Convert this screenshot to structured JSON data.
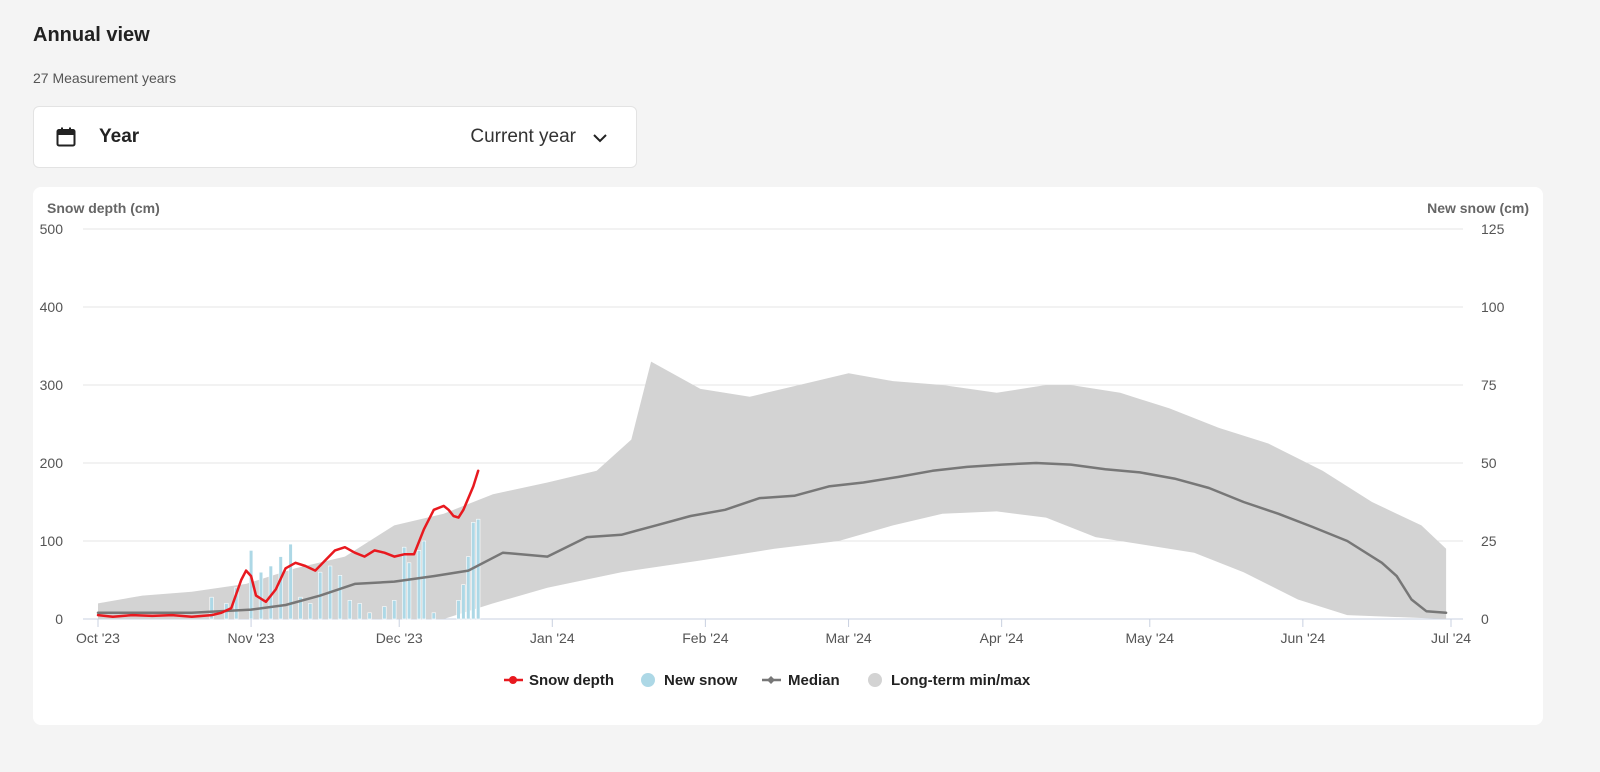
{
  "header": {
    "title": "Annual view",
    "subtitle": "27 Measurement years"
  },
  "year_selector": {
    "label": "Year",
    "value": "Current year",
    "icon": "calendar-icon",
    "chevron_icon": "chevron-down-icon"
  },
  "colors": {
    "snow_depth": "#e8191f",
    "new_snow": "#add8e6",
    "median": "#777777",
    "minmax": "#d3d3d3"
  },
  "chart_data": {
    "type": "line",
    "left_axis_title": "Snow depth (cm)",
    "right_axis_title": "New snow (cm)",
    "left_ylim": [
      0,
      500
    ],
    "left_ticks": [
      "0",
      "100",
      "200",
      "300",
      "400",
      "500"
    ],
    "right_ylim": [
      0,
      125
    ],
    "right_ticks": [
      "0",
      "25",
      "50",
      "75",
      "100",
      "125"
    ],
    "x_start": "2023-10-01",
    "x_end": "2024-07-01",
    "x_ticks": [
      {
        "date": "2023-10-01",
        "label": "Oct '23"
      },
      {
        "date": "2023-11-01",
        "label": "Nov '23"
      },
      {
        "date": "2023-12-01",
        "label": "Dec '23"
      },
      {
        "date": "2024-01-01",
        "label": "Jan '24"
      },
      {
        "date": "2024-02-01",
        "label": "Feb '24"
      },
      {
        "date": "2024-03-01",
        "label": "Mar '24"
      },
      {
        "date": "2024-04-01",
        "label": "Apr '24"
      },
      {
        "date": "2024-05-01",
        "label": "May '24"
      },
      {
        "date": "2024-06-01",
        "label": "Jun '24"
      },
      {
        "date": "2024-07-01",
        "label": "Jul '24"
      }
    ],
    "grid": true,
    "legend_position": "bottom-center",
    "legend": [
      "Snow depth",
      "New snow",
      "Median",
      "Long-term min/max"
    ],
    "series": [
      {
        "name": "Snow depth",
        "axis": "left",
        "points": [
          [
            "2023-10-01",
            5
          ],
          [
            "2023-10-04",
            3
          ],
          [
            "2023-10-08",
            5
          ],
          [
            "2023-10-12",
            4
          ],
          [
            "2023-10-16",
            5
          ],
          [
            "2023-10-20",
            3
          ],
          [
            "2023-10-24",
            5
          ],
          [
            "2023-10-26",
            8
          ],
          [
            "2023-10-28",
            14
          ],
          [
            "2023-10-30",
            50
          ],
          [
            "2023-10-31",
            62
          ],
          [
            "2023-11-01",
            55
          ],
          [
            "2023-11-02",
            30
          ],
          [
            "2023-11-04",
            22
          ],
          [
            "2023-11-06",
            38
          ],
          [
            "2023-11-08",
            65
          ],
          [
            "2023-11-10",
            72
          ],
          [
            "2023-11-12",
            68
          ],
          [
            "2023-11-14",
            62
          ],
          [
            "2023-11-16",
            75
          ],
          [
            "2023-11-18",
            88
          ],
          [
            "2023-11-20",
            92
          ],
          [
            "2023-11-22",
            85
          ],
          [
            "2023-11-24",
            80
          ],
          [
            "2023-11-26",
            88
          ],
          [
            "2023-11-28",
            85
          ],
          [
            "2023-11-30",
            80
          ],
          [
            "2023-12-02",
            83
          ],
          [
            "2023-12-04",
            83
          ],
          [
            "2023-12-06",
            115
          ],
          [
            "2023-12-08",
            140
          ],
          [
            "2023-12-10",
            145
          ],
          [
            "2023-12-11",
            140
          ],
          [
            "2023-12-12",
            132
          ],
          [
            "2023-12-13",
            130
          ],
          [
            "2023-12-14",
            140
          ],
          [
            "2023-12-16",
            170
          ],
          [
            "2023-12-17",
            190
          ]
        ]
      },
      {
        "name": "Median",
        "axis": "left",
        "points": [
          [
            "2023-10-01",
            8
          ],
          [
            "2023-10-20",
            8
          ],
          [
            "2023-11-01",
            12
          ],
          [
            "2023-11-08",
            18
          ],
          [
            "2023-11-15",
            30
          ],
          [
            "2023-11-22",
            45
          ],
          [
            "2023-11-30",
            48
          ],
          [
            "2023-12-08",
            55
          ],
          [
            "2023-12-15",
            62
          ],
          [
            "2023-12-22",
            85
          ],
          [
            "2023-12-31",
            80
          ],
          [
            "2024-01-08",
            105
          ],
          [
            "2024-01-15",
            108
          ],
          [
            "2024-01-22",
            120
          ],
          [
            "2024-01-29",
            132
          ],
          [
            "2024-02-05",
            140
          ],
          [
            "2024-02-12",
            155
          ],
          [
            "2024-02-19",
            158
          ],
          [
            "2024-02-26",
            170
          ],
          [
            "2024-03-04",
            175
          ],
          [
            "2024-03-11",
            182
          ],
          [
            "2024-03-18",
            190
          ],
          [
            "2024-03-25",
            195
          ],
          [
            "2024-04-01",
            198
          ],
          [
            "2024-04-08",
            200
          ],
          [
            "2024-04-15",
            198
          ],
          [
            "2024-04-22",
            192
          ],
          [
            "2024-04-29",
            188
          ],
          [
            "2024-05-06",
            180
          ],
          [
            "2024-05-13",
            168
          ],
          [
            "2024-05-20",
            150
          ],
          [
            "2024-05-27",
            135
          ],
          [
            "2024-06-03",
            118
          ],
          [
            "2024-06-10",
            100
          ],
          [
            "2024-06-17",
            72
          ],
          [
            "2024-06-20",
            55
          ],
          [
            "2024-06-23",
            25
          ],
          [
            "2024-06-26",
            10
          ],
          [
            "2024-06-30",
            8
          ]
        ]
      }
    ],
    "range": {
      "name": "Long-term min/max",
      "axis": "left",
      "max": [
        [
          "2023-10-01",
          20
        ],
        [
          "2023-10-10",
          30
        ],
        [
          "2023-10-20",
          35
        ],
        [
          "2023-10-31",
          45
        ],
        [
          "2023-11-10",
          65
        ],
        [
          "2023-11-20",
          80
        ],
        [
          "2023-11-30",
          120
        ],
        [
          "2023-12-10",
          135
        ],
        [
          "2023-12-20",
          160
        ],
        [
          "2023-12-31",
          175
        ],
        [
          "2024-01-10",
          190
        ],
        [
          "2024-01-17",
          230
        ],
        [
          "2024-01-21",
          330
        ],
        [
          "2024-01-31",
          295
        ],
        [
          "2024-02-10",
          285
        ],
        [
          "2024-02-20",
          300
        ],
        [
          "2024-03-01",
          315
        ],
        [
          "2024-03-10",
          305
        ],
        [
          "2024-03-20",
          300
        ],
        [
          "2024-03-31",
          290
        ],
        [
          "2024-04-10",
          300
        ],
        [
          "2024-04-15",
          300
        ],
        [
          "2024-04-25",
          290
        ],
        [
          "2024-05-05",
          270
        ],
        [
          "2024-05-15",
          245
        ],
        [
          "2024-05-25",
          225
        ],
        [
          "2024-06-05",
          190
        ],
        [
          "2024-06-15",
          150
        ],
        [
          "2024-06-25",
          120
        ],
        [
          "2024-06-30",
          90
        ]
      ],
      "min": [
        [
          "2023-10-01",
          0
        ],
        [
          "2023-12-10",
          0
        ],
        [
          "2023-12-20",
          20
        ],
        [
          "2023-12-31",
          40
        ],
        [
          "2024-01-15",
          60
        ],
        [
          "2024-01-31",
          75
        ],
        [
          "2024-02-15",
          90
        ],
        [
          "2024-02-28",
          100
        ],
        [
          "2024-03-10",
          120
        ],
        [
          "2024-03-20",
          135
        ],
        [
          "2024-03-31",
          138
        ],
        [
          "2024-04-10",
          130
        ],
        [
          "2024-04-20",
          105
        ],
        [
          "2024-04-30",
          95
        ],
        [
          "2024-05-10",
          85
        ],
        [
          "2024-05-20",
          60
        ],
        [
          "2024-05-31",
          25
        ],
        [
          "2024-06-10",
          5
        ],
        [
          "2024-06-30",
          0
        ]
      ]
    },
    "bars": {
      "name": "New snow",
      "axis": "right",
      "values": [
        [
          "2023-10-24",
          7
        ],
        [
          "2023-10-27",
          5
        ],
        [
          "2023-10-29",
          10
        ],
        [
          "2023-11-01",
          22
        ],
        [
          "2023-11-03",
          15
        ],
        [
          "2023-11-05",
          17
        ],
        [
          "2023-11-07",
          20
        ],
        [
          "2023-11-09",
          24
        ],
        [
          "2023-11-11",
          7
        ],
        [
          "2023-11-13",
          5
        ],
        [
          "2023-11-15",
          15
        ],
        [
          "2023-11-17",
          17
        ],
        [
          "2023-11-19",
          14
        ],
        [
          "2023-11-21",
          6
        ],
        [
          "2023-11-23",
          5
        ],
        [
          "2023-11-25",
          2
        ],
        [
          "2023-11-28",
          4
        ],
        [
          "2023-11-30",
          6
        ],
        [
          "2023-12-02",
          23
        ],
        [
          "2023-12-03",
          18
        ],
        [
          "2023-12-05",
          22
        ],
        [
          "2023-12-06",
          25
        ],
        [
          "2023-12-08",
          2
        ],
        [
          "2023-12-13",
          6
        ],
        [
          "2023-12-14",
          11
        ],
        [
          "2023-12-15",
          20
        ],
        [
          "2023-12-16",
          31
        ],
        [
          "2023-12-17",
          32
        ]
      ]
    }
  }
}
